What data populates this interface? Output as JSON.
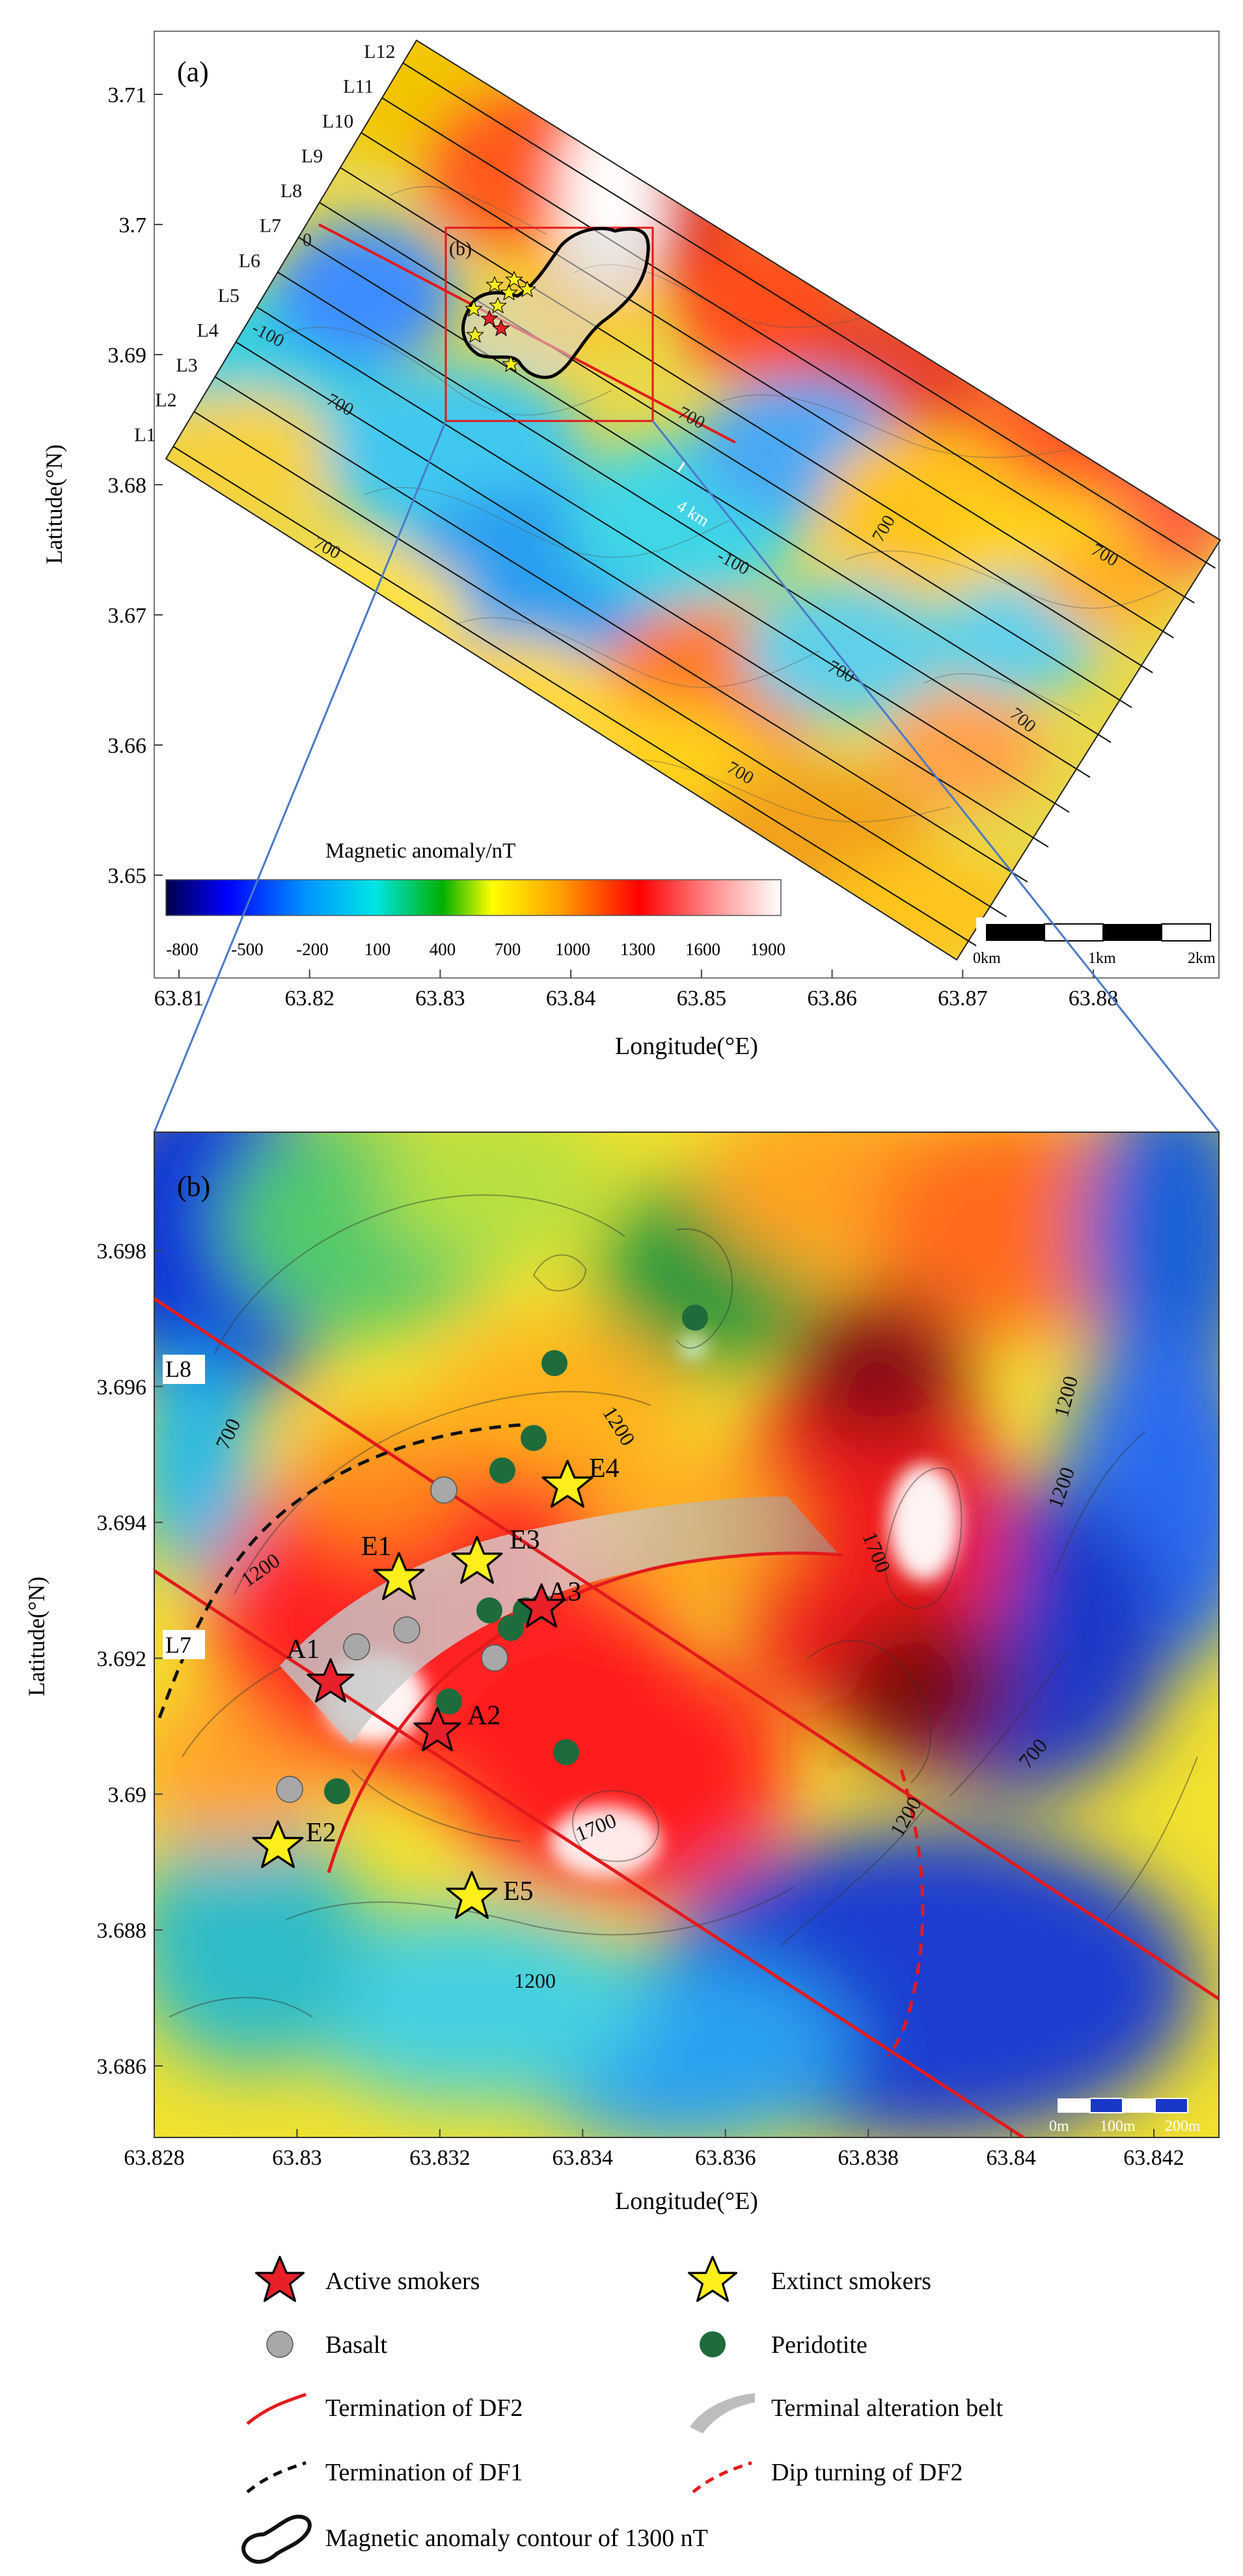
{
  "panel_a": {
    "label": "(a)",
    "subregion_label": "(b)",
    "y_axis_label": "Latitude(°N)",
    "x_axis_label": "Longitude(°E)",
    "y_ticks": [
      "3.71",
      "3.7",
      "3.69",
      "3.68",
      "3.67",
      "3.66",
      "3.65"
    ],
    "x_ticks": [
      "63.81",
      "63.82",
      "63.83",
      "63.84",
      "63.85",
      "63.86",
      "63.87",
      "63.88"
    ],
    "survey_lines": [
      "L1",
      "L2",
      "L3",
      "L4",
      "L5",
      "L6",
      "L7",
      "L8",
      "L9",
      "L10",
      "L11",
      "L12"
    ],
    "contour_labels": [
      "-100",
      "700",
      "700",
      "-100",
      "700",
      "700",
      "700",
      "700",
      "700",
      "700",
      "0"
    ],
    "distance_label": "4 km",
    "colorbar_title": "Magnetic anomaly/nT",
    "colorbar_ticks": [
      "-800",
      "-500",
      "-200",
      "100",
      "400",
      "700",
      "1000",
      "1300",
      "1600",
      "1900"
    ],
    "colorbar_colors": [
      "#00004a",
      "#0000ff",
      "#0096ff",
      "#00e5e5",
      "#00b000",
      "#ffff00",
      "#ffa000",
      "#ff0000",
      "#ff9090",
      "#ffffff"
    ],
    "scalebar_labels": [
      "0km",
      "1km",
      "2km"
    ]
  },
  "panel_b": {
    "label": "(b)",
    "y_axis_label": "Latitude(°N)",
    "x_axis_label": "Longitude(°E)",
    "y_ticks": [
      "3.698",
      "3.696",
      "3.694",
      "3.692",
      "3.69",
      "3.688",
      "3.686"
    ],
    "x_ticks": [
      "63.828",
      "63.83",
      "63.832",
      "63.834",
      "63.836",
      "63.838",
      "63.84",
      "63.842"
    ],
    "line_labels": [
      "L8",
      "L7"
    ],
    "contour_labels": [
      "700",
      "1200",
      "1200",
      "1700",
      "1200",
      "1700",
      "1200",
      "700",
      "1200",
      "1200"
    ],
    "active_smokers": [
      "A1",
      "A2",
      "A3"
    ],
    "extinct_smokers": [
      "E1",
      "E2",
      "E3",
      "E4",
      "E5"
    ],
    "scalebar_labels": [
      "0m",
      "100m",
      "200m"
    ]
  },
  "legend": {
    "active_smokers": "Active smokers",
    "extinct_smokers": "Extinct smokers",
    "basalt": "Basalt",
    "peridotite": "Peridotite",
    "termination_df2": "Termination of DF2",
    "terminal_belt": "Terminal alteration belt",
    "termination_df1": "Termination of DF1",
    "dip_turning_df2": "Dip turning of DF2",
    "contour_1300": "Magnetic anomaly contour of 1300 nT"
  },
  "colors": {
    "fault_red": "#e31a1c",
    "active_star": "#e8202a",
    "extinct_star": "#ffef1a",
    "basalt": "#a8a8a8",
    "peridotite": "#1e6b3c"
  }
}
